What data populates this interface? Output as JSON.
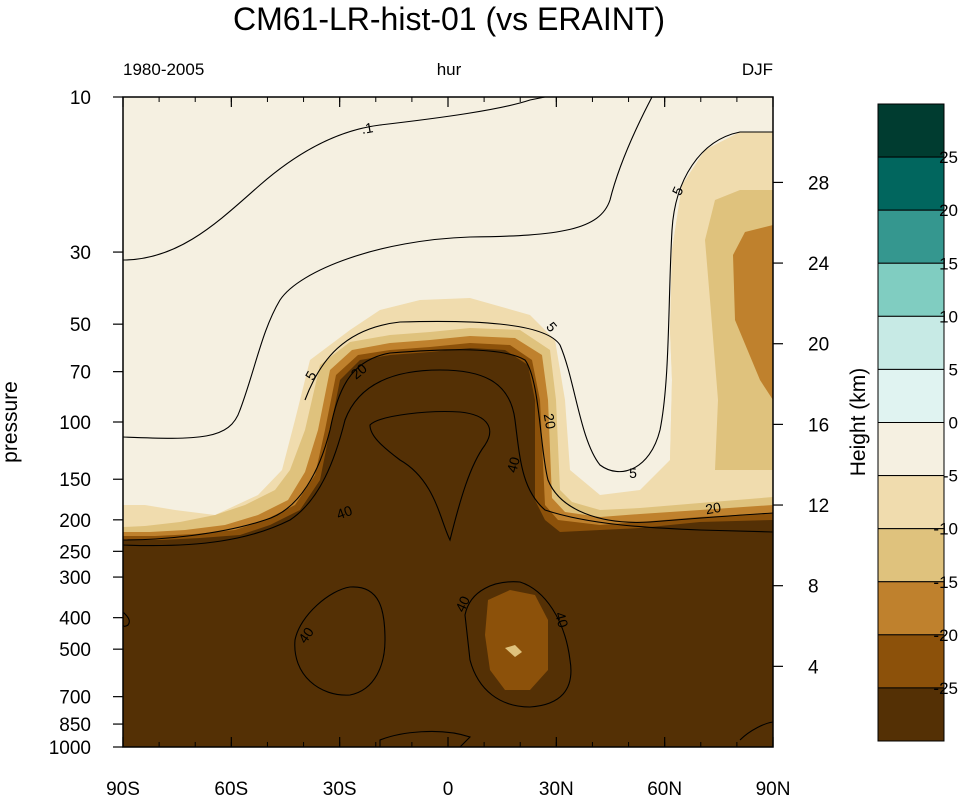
{
  "title": "CM61-LR-hist-01  (vs ERAINT)",
  "subtitle_left": "1980-2005",
  "subtitle_center": "hur",
  "subtitle_right": "DJF",
  "chart_data": {
    "type": "contour",
    "title": "CM61-LR-hist-01  (vs ERAINT)",
    "variable": "hur",
    "period": "1980-2005",
    "season": "DJF",
    "xlabel": "",
    "ylabel": "pressure",
    "ylabel_right": "Height (km)",
    "x_ticks": [
      "90S",
      "60S",
      "30S",
      "0",
      "30N",
      "60N",
      "90N"
    ],
    "x_tick_values": [
      -90,
      -60,
      -30,
      0,
      30,
      60,
      90
    ],
    "y_ticks": [
      10,
      30,
      50,
      70,
      100,
      150,
      200,
      250,
      300,
      400,
      500,
      700,
      850,
      1000
    ],
    "y_scale": "log",
    "y_range": [
      1000,
      10
    ],
    "height_ticks": [
      4,
      8,
      12,
      16,
      20,
      24,
      28
    ],
    "contour_labels": [
      ".1",
      "5",
      "5",
      "5",
      "5",
      "20",
      "20",
      "20",
      "40",
      "40",
      "40",
      "40",
      "40"
    ],
    "colorbar": {
      "labels": [
        "25",
        "20",
        "15",
        "10",
        "5",
        "0",
        "-5",
        "-10",
        "-15",
        "-20",
        "-25"
      ],
      "colors": [
        "#003c30",
        "#01665e",
        "#35978f",
        "#80cdc1",
        "#c7eae5",
        "#e0f3f1",
        "#f5f0e1",
        "#f0dcae",
        "#dfc27d",
        "#bf812d",
        "#8c510a",
        "#543005"
      ]
    },
    "regions": [
      {
        "level": "-5",
        "color": "#f5f0e1"
      },
      {
        "level": "-10",
        "color": "#f0dcae"
      },
      {
        "level": "-15",
        "color": "#dfc27d"
      },
      {
        "level": "-20",
        "color": "#bf812d"
      },
      {
        "level": "-25",
        "color": "#8c510a"
      },
      {
        "level": "<-25",
        "color": "#543005"
      }
    ]
  }
}
